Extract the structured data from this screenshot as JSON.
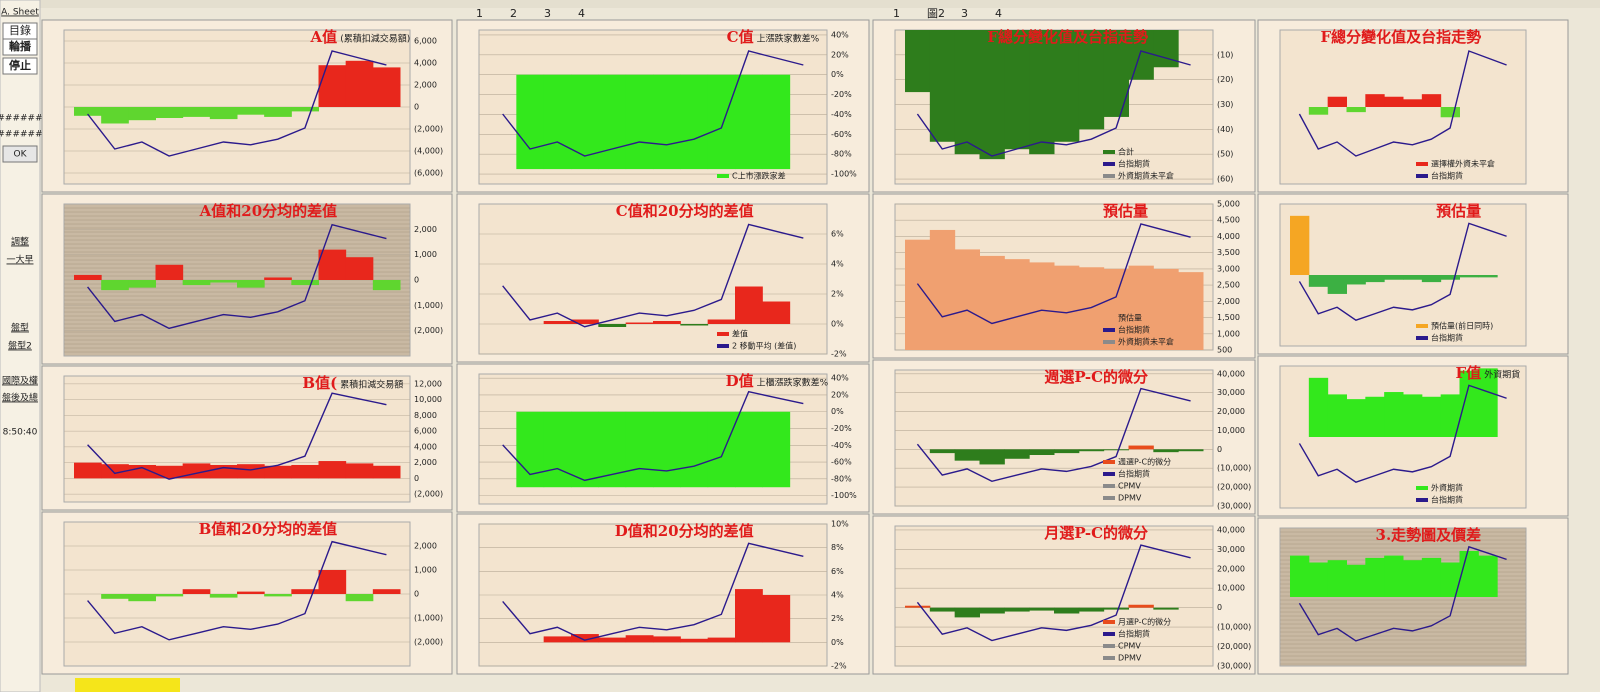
{
  "sidebar": [
    "A. Sheet",
    "目錄",
    "輪播",
    "停止",
    "######",
    "######",
    "OK",
    "調整",
    "一大早",
    "盤型",
    "盤型2",
    "國際及權",
    "盤後及總",
    "8:50:40"
  ],
  "tabs_left": [
    "1",
    "2",
    "3",
    "4"
  ],
  "tabs_right": [
    "1",
    "圖2",
    "3",
    "4"
  ],
  "index": {
    "color": "#2b1a8c",
    "ylim": [
      9300,
      10400
    ],
    "values": [
      9800,
      9550,
      9600,
      9500,
      9550,
      9600,
      9580,
      9620,
      9700,
      10250,
      10200,
      10150
    ]
  },
  "panels": [
    {
      "title": "A值",
      "subtitle": "(累積扣減交易額)",
      "background": "#f3e4cf",
      "y2lim": [
        -7000,
        7000
      ],
      "y2ticks": [
        {
          "value": 6000,
          "label": "6,000"
        },
        {
          "value": 4000,
          "label": "4,000"
        },
        {
          "value": 2000,
          "label": "2,000"
        },
        0,
        {
          "value": -2000,
          "label": "(2,000)"
        },
        {
          "value": -4000,
          "label": "(4,000)"
        },
        {
          "value": -6000,
          "label": "(6,000)"
        }
      ],
      "bar_colors": [
        "#e8271c",
        "#5fd62f"
      ],
      "bars": [
        -800,
        -1500,
        -1200,
        -1000,
        -900,
        -1100,
        -700,
        -900,
        -400,
        3800,
        4200,
        3600
      ]
    },
    {
      "title": "C值",
      "subtitle": "上漲跌家數差%",
      "legend": [
        "C上市漲跌家差"
      ],
      "background": "#f3e4cf",
      "y2lim": [
        -110,
        45
      ],
      "y2ticks": [
        {
          "value": 40,
          "label": "40%"
        },
        {
          "value": 20,
          "label": "20%"
        },
        {
          "value": 0,
          "label": "0%"
        },
        {
          "value": -20,
          "label": "-20%"
        },
        {
          "value": -40,
          "label": "-40%"
        },
        {
          "value": -60,
          "label": "-60%"
        },
        {
          "value": -80,
          "label": "-80%"
        },
        {
          "value": -100,
          "label": "-100%"
        }
      ],
      "bar_colors": [
        "#33e81c",
        "#33e81c"
      ],
      "bars": [
        null,
        -95,
        -95,
        -95,
        -95,
        -95,
        -95,
        -95,
        -95,
        -95,
        -95,
        null
      ]
    },
    {
      "title": "F總分變化值及台指走勢",
      "legend": [
        "合計",
        "台指期貨",
        "外資期貨未平倉"
      ],
      "background": "#f3e4cf",
      "y2lim": [
        -62,
        0
      ],
      "y2ticks": [
        {
          "value": -10,
          "label": "(10)"
        },
        {
          "value": -20,
          "label": "(20)"
        },
        {
          "value": -30,
          "label": "(30)"
        },
        {
          "value": -40,
          "label": "(40)"
        },
        {
          "value": -50,
          "label": "(50)"
        },
        {
          "value": -60,
          "label": "(60)"
        }
      ],
      "bar_colors": [
        "#2e7d1c",
        "#2e7d1c"
      ],
      "bars": [
        -25,
        -45,
        -50,
        -52,
        -48,
        -50,
        -45,
        -40,
        -35,
        -20,
        -15,
        null
      ]
    },
    {
      "title": "F總分變化值及台指走勢",
      "legend": [
        "選擇權外資未平倉",
        "台指期貨"
      ],
      "background": "#f3e4cf",
      "y2lim": [
        -3000,
        3000
      ],
      "bar_colors": [
        "#e8271c",
        "#5fd62f"
      ],
      "bars": [
        null,
        -300,
        400,
        -200,
        500,
        400,
        300,
        500,
        -400,
        null,
        null,
        null
      ]
    },
    {
      "title": "A值和20分均的差值",
      "background": "#c9b9a3",
      "y2lim": [
        -3000,
        3000
      ],
      "y2ticks": [
        {
          "value": 2000,
          "label": "2,000"
        },
        {
          "value": 1000,
          "label": "1,000"
        },
        0,
        {
          "value": -1000,
          "label": "(1,000)"
        },
        {
          "value": -2000,
          "label": "(2,000)"
        }
      ],
      "bar_colors": [
        "#e8271c",
        "#5fd62f"
      ],
      "bars": [
        200,
        -400,
        -300,
        600,
        -200,
        -100,
        -300,
        100,
        -200,
        1200,
        900,
        -400
      ]
    },
    {
      "title": "C值和20分均的差值",
      "legend": [
        "差值",
        "2 移動平均 (差值)"
      ],
      "background": "#f3e4cf",
      "y2lim": [
        -2,
        8
      ],
      "y2ticks": [
        {
          "value": 6,
          "label": "6%"
        },
        {
          "value": 4,
          "label": "4%"
        },
        {
          "value": 2,
          "label": "2%"
        },
        {
          "value": 0,
          "label": "0%"
        },
        {
          "value": -2,
          "label": "-2%"
        }
      ],
      "bar_colors": [
        "#e8271c",
        "#2e7d1c"
      ],
      "bars": [
        null,
        null,
        0.2,
        0.3,
        -0.2,
        0.1,
        0.2,
        -0.1,
        0.3,
        2.5,
        1.5,
        null
      ]
    },
    {
      "title": "預估量",
      "legend": [
        "預估量",
        "台指期貨",
        "外資期貨未平倉"
      ],
      "background": "#f3e4cf",
      "y2lim": [
        500,
        5000
      ],
      "y2ticks": [
        {
          "value": 5000,
          "label": "5,000"
        },
        {
          "value": 4500,
          "label": "4,500"
        },
        {
          "value": 4000,
          "label": "4,000"
        },
        {
          "value": 3500,
          "label": "3,500"
        },
        {
          "value": 3000,
          "label": "3,000"
        },
        {
          "value": 2500,
          "label": "2,500"
        },
        {
          "value": 2000,
          "label": "2,000"
        },
        {
          "value": 1500,
          "label": "1,500"
        },
        {
          "value": 1000,
          "label": "1,000"
        },
        500
      ],
      "bar_colors": [
        "#f0a070",
        "#f0a070"
      ],
      "bars": [
        3900,
        4200,
        3600,
        3400,
        3300,
        3200,
        3100,
        3050,
        3000,
        3100,
        3000,
        2900
      ]
    },
    {
      "title": "預估量",
      "legend": [
        "預估量(前日同時)",
        "台指期貨"
      ],
      "background": "#f3e4cf",
      "y2lim": [
        -3000,
        3000
      ],
      "bar_colors": [
        "#f5a623",
        "#3cb043"
      ],
      "bars": [
        2500,
        -500,
        -800,
        -400,
        -300,
        -200,
        -200,
        -300,
        -200,
        -100,
        -100,
        null
      ]
    },
    {
      "title": "B值(",
      "subtitle": "累積扣減交易額",
      "background": "#f3e4cf",
      "y2lim": [
        -3000,
        13000
      ],
      "y2ticks": [
        {
          "value": 12000,
          "label": "12,000"
        },
        {
          "value": 10000,
          "label": "10,000"
        },
        {
          "value": 8000,
          "label": "8,000"
        },
        {
          "value": 6000,
          "label": "6,000"
        },
        {
          "value": 4000,
          "label": "4,000"
        },
        {
          "value": 2000,
          "label": "2,000"
        },
        0,
        {
          "value": -2000,
          "label": "(2,000)"
        }
      ],
      "bar_colors": [
        "#e8271c",
        "#5fd62f"
      ],
      "bars": [
        2000,
        1800,
        1700,
        1600,
        1900,
        1700,
        1800,
        1600,
        1700,
        2200,
        1900,
        1600
      ]
    },
    {
      "title": "D值",
      "subtitle": "上櫃漲跌家數差%",
      "background": "#f3e4cf",
      "y2lim": [
        -110,
        45
      ],
      "y2ticks": [
        {
          "value": 40,
          "label": "40%"
        },
        {
          "value": 20,
          "label": "20%"
        },
        {
          "value": 0,
          "label": "0%"
        },
        {
          "value": -20,
          "label": "-20%"
        },
        {
          "value": -40,
          "label": "-40%"
        },
        {
          "value": -60,
          "label": "-60%"
        },
        {
          "value": -80,
          "label": "-80%"
        },
        {
          "value": -100,
          "label": "-100%"
        }
      ],
      "bar_colors": [
        "#33e81c",
        "#33e81c"
      ],
      "bars": [
        null,
        -90,
        -90,
        -90,
        -90,
        -90,
        -90,
        -90,
        -90,
        -90,
        -90,
        null
      ]
    },
    {
      "title": "週選P-C的微分",
      "legend": [
        "週選P-C的微分",
        "台指期貨",
        "CPMV",
        "DPMV"
      ],
      "background": "#f3e4cf",
      "y2lim": [
        -30000,
        42000
      ],
      "y2ticks": [
        {
          "value": 40000,
          "label": "40,000"
        },
        {
          "value": 30000,
          "label": "30,000"
        },
        {
          "value": 20000,
          "label": "20,000"
        },
        {
          "value": 10000,
          "label": "10,000"
        },
        0,
        {
          "value": -10000,
          "label": "(10,000)"
        },
        {
          "value": -20000,
          "label": "(20,000)"
        },
        {
          "value": -30000,
          "label": "(30,000)"
        }
      ],
      "bar_colors": [
        "#e84c1c",
        "#2e7d1c"
      ],
      "bars": [
        0,
        -2000,
        -6000,
        -8000,
        -5000,
        -3000,
        -2000,
        -1000,
        -500,
        2000,
        -1500,
        -1000
      ]
    },
    {
      "title": "F值",
      "subtitle": "外資期貨",
      "legend": [
        "外資期貨",
        "台指期貨"
      ],
      "background": "#f3e4cf",
      "y2lim": [
        -3000,
        3000
      ],
      "bar_colors": [
        "#33e81c",
        "#33e81c"
      ],
      "bars": [
        null,
        2500,
        1800,
        1600,
        1700,
        1900,
        1800,
        1700,
        1800,
        2800,
        2900,
        null
      ]
    },
    {
      "title": "B值和20分均的差值",
      "background": "#f3e4cf",
      "y2lim": [
        -3000,
        3000
      ],
      "y2ticks": [
        {
          "value": 2000,
          "label": "2,000"
        },
        {
          "value": 1000,
          "label": "1,000"
        },
        0,
        {
          "value": -1000,
          "label": "(1,000)"
        },
        {
          "value": -2000,
          "label": "(2,000)"
        }
      ],
      "bar_colors": [
        "#e8271c",
        "#5fd62f"
      ],
      "bars": [
        null,
        -200,
        -300,
        -100,
        200,
        -150,
        100,
        -100,
        200,
        1000,
        -300,
        200
      ]
    },
    {
      "title": "D值和20分均的差值",
      "background": "#f3e4cf",
      "y2lim": [
        -2,
        10
      ],
      "y2ticks": [
        {
          "value": 10,
          "label": "10%"
        },
        {
          "value": 8,
          "label": "8%"
        },
        {
          "value": 6,
          "label": "6%"
        },
        {
          "value": 4,
          "label": "4%"
        },
        {
          "value": 2,
          "label": "2%"
        },
        {
          "value": 0,
          "label": "0%"
        },
        {
          "value": -2,
          "label": "-2%"
        }
      ],
      "bar_colors": [
        "#e8271c",
        "#2e7d1c"
      ],
      "bars": [
        null,
        null,
        0.5,
        0.7,
        0.4,
        0.6,
        0.5,
        0.3,
        0.4,
        4.5,
        4,
        null
      ]
    },
    {
      "title": "月選P-C的微分",
      "legend": [
        "月選P-C的微分",
        "台指期貨",
        "CPMV",
        "DPMV"
      ],
      "background": "#f3e4cf",
      "y2lim": [
        -30000,
        42000
      ],
      "y2ticks": [
        {
          "value": 40000,
          "label": "40,000"
        },
        {
          "value": 30000,
          "label": "30,000"
        },
        {
          "value": 20000,
          "label": "20,000"
        },
        {
          "value": 10000,
          "label": "10,000"
        },
        0,
        {
          "value": -10000,
          "label": "(10,000)"
        },
        {
          "value": -20000,
          "label": "(20,000)"
        },
        {
          "value": -30000,
          "label": "(30,000)"
        }
      ],
      "bar_colors": [
        "#e84c1c",
        "#2e7d1c"
      ],
      "bars": [
        1000,
        -2000,
        -5000,
        -3000,
        -2000,
        -1500,
        -3000,
        -2000,
        -1000,
        1500,
        -1000,
        null
      ]
    },
    {
      "title": "3.走勢圖及價差",
      "background": "#c9b9a3",
      "y2lim": [
        -3000,
        3000
      ],
      "bar_colors": [
        "#33e81c",
        "#d9a441"
      ],
      "bars": [
        1800,
        1500,
        1600,
        1400,
        1700,
        1800,
        1600,
        1700,
        1500,
        2000,
        1800,
        null
      ]
    }
  ]
}
